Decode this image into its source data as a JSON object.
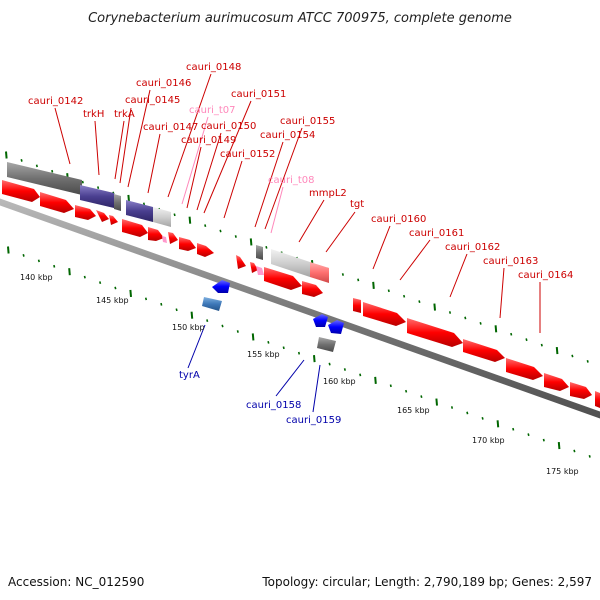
{
  "title": "Corynebacterium aurimucosum ATCC 700975, complete genome",
  "footer": {
    "accession": "Accession: NC_012590",
    "stats": "Topology: circular; Length: 2,790,189 bp; Genes: 2,597"
  },
  "colors": {
    "forward_gene": "#ff0000",
    "reverse_gene": "#0000ff",
    "trna": "#ff99cc",
    "label_forward": "#cc0000",
    "label_reverse": "#0000aa",
    "label_trna": "#ff88bb",
    "tick": "#006600",
    "backbone": "#808080"
  },
  "kbp_ticks": [
    "140 kbp",
    "145 kbp",
    "150 kbp",
    "155 kbp",
    "160 kbp",
    "165 kbp",
    "170 kbp",
    "175 kbp"
  ],
  "forward_labels": [
    {
      "id": "cauri_0142",
      "color": "#cc0000"
    },
    {
      "id": "trkH",
      "color": "#cc0000"
    },
    {
      "id": "trkA",
      "color": "#cc0000"
    },
    {
      "id": "cauri_0145",
      "color": "#cc0000"
    },
    {
      "id": "cauri_0146",
      "color": "#cc0000"
    },
    {
      "id": "cauri_0147",
      "color": "#cc0000"
    },
    {
      "id": "cauri_0148",
      "color": "#cc0000"
    },
    {
      "id": "cauri_t07",
      "color": "#ff88bb"
    },
    {
      "id": "cauri_0149",
      "color": "#cc0000"
    },
    {
      "id": "cauri_0150",
      "color": "#cc0000"
    },
    {
      "id": "cauri_0151",
      "color": "#cc0000"
    },
    {
      "id": "cauri_0152",
      "color": "#cc0000"
    },
    {
      "id": "cauri_0154",
      "color": "#cc0000"
    },
    {
      "id": "cauri_0155",
      "color": "#cc0000"
    },
    {
      "id": "cauri_t08",
      "color": "#ff88bb"
    },
    {
      "id": "mmpL2",
      "color": "#cc0000"
    },
    {
      "id": "tgt",
      "color": "#cc0000"
    },
    {
      "id": "cauri_0160",
      "color": "#cc0000"
    },
    {
      "id": "cauri_0161",
      "color": "#cc0000"
    },
    {
      "id": "cauri_0162",
      "color": "#cc0000"
    },
    {
      "id": "cauri_0163",
      "color": "#cc0000"
    },
    {
      "id": "cauri_0164",
      "color": "#cc0000"
    }
  ],
  "reverse_labels": [
    {
      "id": "tyrA",
      "color": "#0000aa"
    },
    {
      "id": "cauri_0158",
      "color": "#0000aa"
    },
    {
      "id": "cauri_0159",
      "color": "#0000aa"
    }
  ]
}
